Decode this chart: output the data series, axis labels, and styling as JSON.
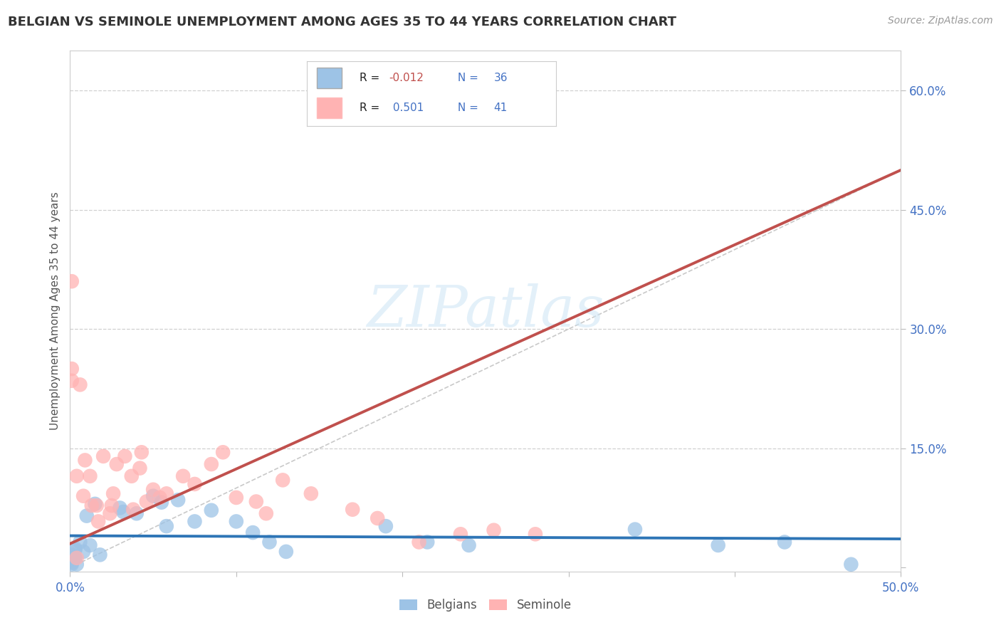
{
  "title": "BELGIAN VS SEMINOLE UNEMPLOYMENT AMONG AGES 35 TO 44 YEARS CORRELATION CHART",
  "source": "Source: ZipAtlas.com",
  "ylabel": "Unemployment Among Ages 35 to 44 years",
  "xlim": [
    0.0,
    0.5
  ],
  "ylim": [
    -0.005,
    0.65
  ],
  "ytick_positions": [
    0.0,
    0.15,
    0.3,
    0.45,
    0.6
  ],
  "ytick_labels": [
    "",
    "15.0%",
    "30.0%",
    "45.0%",
    "60.0%"
  ],
  "xtick_positions": [
    0.0,
    0.1,
    0.2,
    0.3,
    0.4,
    0.5
  ],
  "xtick_labels": [
    "0.0%",
    "",
    "",
    "",
    "",
    "50.0%"
  ],
  "axis_color": "#4472c4",
  "background_color": "#ffffff",
  "watermark_text": "ZIPatlas",
  "legend_r_belgian": "-0.012",
  "legend_n_belgian": "36",
  "legend_r_seminole": "0.501",
  "legend_n_seminole": "41",
  "belgian_color": "#9dc3e6",
  "seminole_color": "#ffb3b3",
  "belgian_line_color": "#2e75b6",
  "seminole_line_color": "#c0504d",
  "diagonal_line_color": "#c9c9c9",
  "belgian_points_x": [
    0.002,
    0.004,
    0.0,
    0.001,
    0.008,
    0.012,
    0.006,
    0.003,
    0.018,
    0.001,
    0.002,
    0.003,
    0.001,
    0.01,
    0.015,
    0.03,
    0.032,
    0.05,
    0.065,
    0.04,
    0.058,
    0.055,
    0.075,
    0.085,
    0.11,
    0.1,
    0.12,
    0.13,
    0.19,
    0.215,
    0.24,
    0.34,
    0.39,
    0.43,
    0.47,
    0.003
  ],
  "belgian_points_y": [
    0.01,
    0.004,
    0.008,
    0.016,
    0.02,
    0.028,
    0.032,
    0.022,
    0.016,
    0.004,
    0.012,
    0.024,
    0.006,
    0.065,
    0.08,
    0.075,
    0.07,
    0.09,
    0.085,
    0.068,
    0.052,
    0.082,
    0.058,
    0.072,
    0.044,
    0.058,
    0.032,
    0.02,
    0.052,
    0.032,
    0.028,
    0.048,
    0.028,
    0.032,
    0.004,
    0.012
  ],
  "seminole_points_x": [
    0.001,
    0.001,
    0.001,
    0.006,
    0.004,
    0.008,
    0.009,
    0.012,
    0.013,
    0.016,
    0.017,
    0.02,
    0.024,
    0.025,
    0.026,
    0.028,
    0.033,
    0.037,
    0.038,
    0.042,
    0.043,
    0.046,
    0.05,
    0.054,
    0.058,
    0.068,
    0.075,
    0.085,
    0.092,
    0.1,
    0.112,
    0.118,
    0.128,
    0.145,
    0.17,
    0.185,
    0.21,
    0.235,
    0.255,
    0.28,
    0.004
  ],
  "seminole_points_y": [
    0.36,
    0.25,
    0.235,
    0.23,
    0.115,
    0.09,
    0.135,
    0.115,
    0.078,
    0.078,
    0.058,
    0.14,
    0.068,
    0.078,
    0.093,
    0.13,
    0.14,
    0.115,
    0.073,
    0.125,
    0.145,
    0.083,
    0.098,
    0.088,
    0.093,
    0.115,
    0.105,
    0.13,
    0.145,
    0.088,
    0.083,
    0.068,
    0.11,
    0.093,
    0.073,
    0.062,
    0.032,
    0.042,
    0.047,
    0.042,
    0.012
  ],
  "seminole_line_x0": 0.0,
  "seminole_line_x1": 0.5,
  "seminole_line_y0": 0.03,
  "seminole_line_y1": 0.5,
  "belgian_line_x0": 0.0,
  "belgian_line_x1": 0.5,
  "belgian_line_y0": 0.04,
  "belgian_line_y1": 0.036
}
